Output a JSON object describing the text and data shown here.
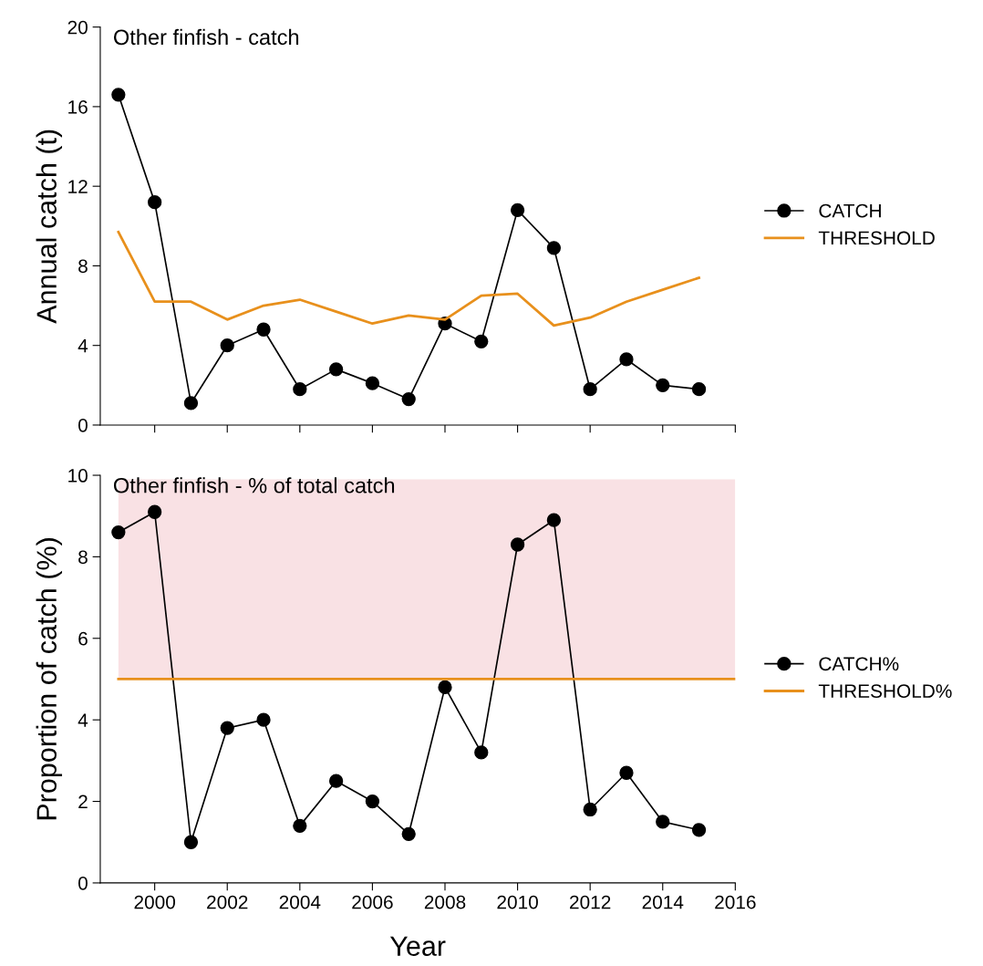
{
  "chart_data": [
    {
      "type": "line",
      "title": "Other finfish - catch",
      "ylabel": "Annual catch (t)",
      "x": [
        1999,
        2000,
        2001,
        2002,
        2003,
        2004,
        2005,
        2006,
        2007,
        2008,
        2009,
        2010,
        2011,
        2012,
        2013,
        2014,
        2015
      ],
      "series": [
        {
          "name": "CATCH",
          "color": "#000000",
          "marker": "circle",
          "values": [
            16.6,
            11.2,
            1.1,
            4.0,
            4.8,
            1.8,
            2.8,
            2.1,
            1.3,
            5.1,
            4.2,
            10.8,
            8.9,
            1.8,
            3.3,
            2.0,
            1.8
          ]
        },
        {
          "name": "THRESHOLD",
          "color": "#e8901c",
          "marker": "none",
          "values": [
            9.7,
            6.2,
            6.2,
            5.3,
            6.0,
            6.3,
            5.7,
            5.1,
            5.5,
            5.3,
            6.5,
            6.6,
            5.0,
            5.4,
            6.2,
            6.8,
            7.4
          ]
        }
      ],
      "xlim": [
        1998.5,
        2016
      ],
      "xticks": [
        2000,
        2002,
        2004,
        2006,
        2008,
        2010,
        2012,
        2014,
        2016
      ],
      "ylim": [
        0,
        20
      ],
      "yticks": [
        0,
        4,
        8,
        12,
        16,
        20
      ],
      "tick_labels": "y",
      "legend": "right",
      "grid": false
    },
    {
      "type": "line",
      "title": "Other finfish - % of total catch",
      "xlabel": "Year",
      "ylabel": "Proportion of catch (%)",
      "x": [
        1999,
        2000,
        2001,
        2002,
        2003,
        2004,
        2005,
        2006,
        2007,
        2008,
        2009,
        2010,
        2011,
        2012,
        2013,
        2014,
        2015
      ],
      "series": [
        {
          "name": "CATCH%",
          "color": "#000000",
          "marker": "circle",
          "values": [
            8.6,
            9.1,
            1.0,
            3.8,
            4.0,
            1.4,
            2.5,
            2.0,
            1.2,
            4.8,
            3.2,
            8.3,
            8.9,
            1.8,
            2.7,
            1.5,
            1.3
          ]
        },
        {
          "name": "THRESHOLD%",
          "color": "#e8901c",
          "marker": "none",
          "x": [
            1999,
            2016
          ],
          "values": [
            5,
            5
          ]
        }
      ],
      "bands": [
        {
          "axis": "y",
          "from": 5,
          "to": 9.9,
          "color": "#f9e1e4"
        }
      ],
      "xlim": [
        1998.5,
        2016
      ],
      "xticks": [
        2000,
        2002,
        2004,
        2006,
        2008,
        2010,
        2012,
        2014,
        2016
      ],
      "ylim": [
        0,
        10
      ],
      "yticks": [
        0,
        2,
        4,
        6,
        8,
        10
      ],
      "legend": "right",
      "grid": false
    }
  ]
}
